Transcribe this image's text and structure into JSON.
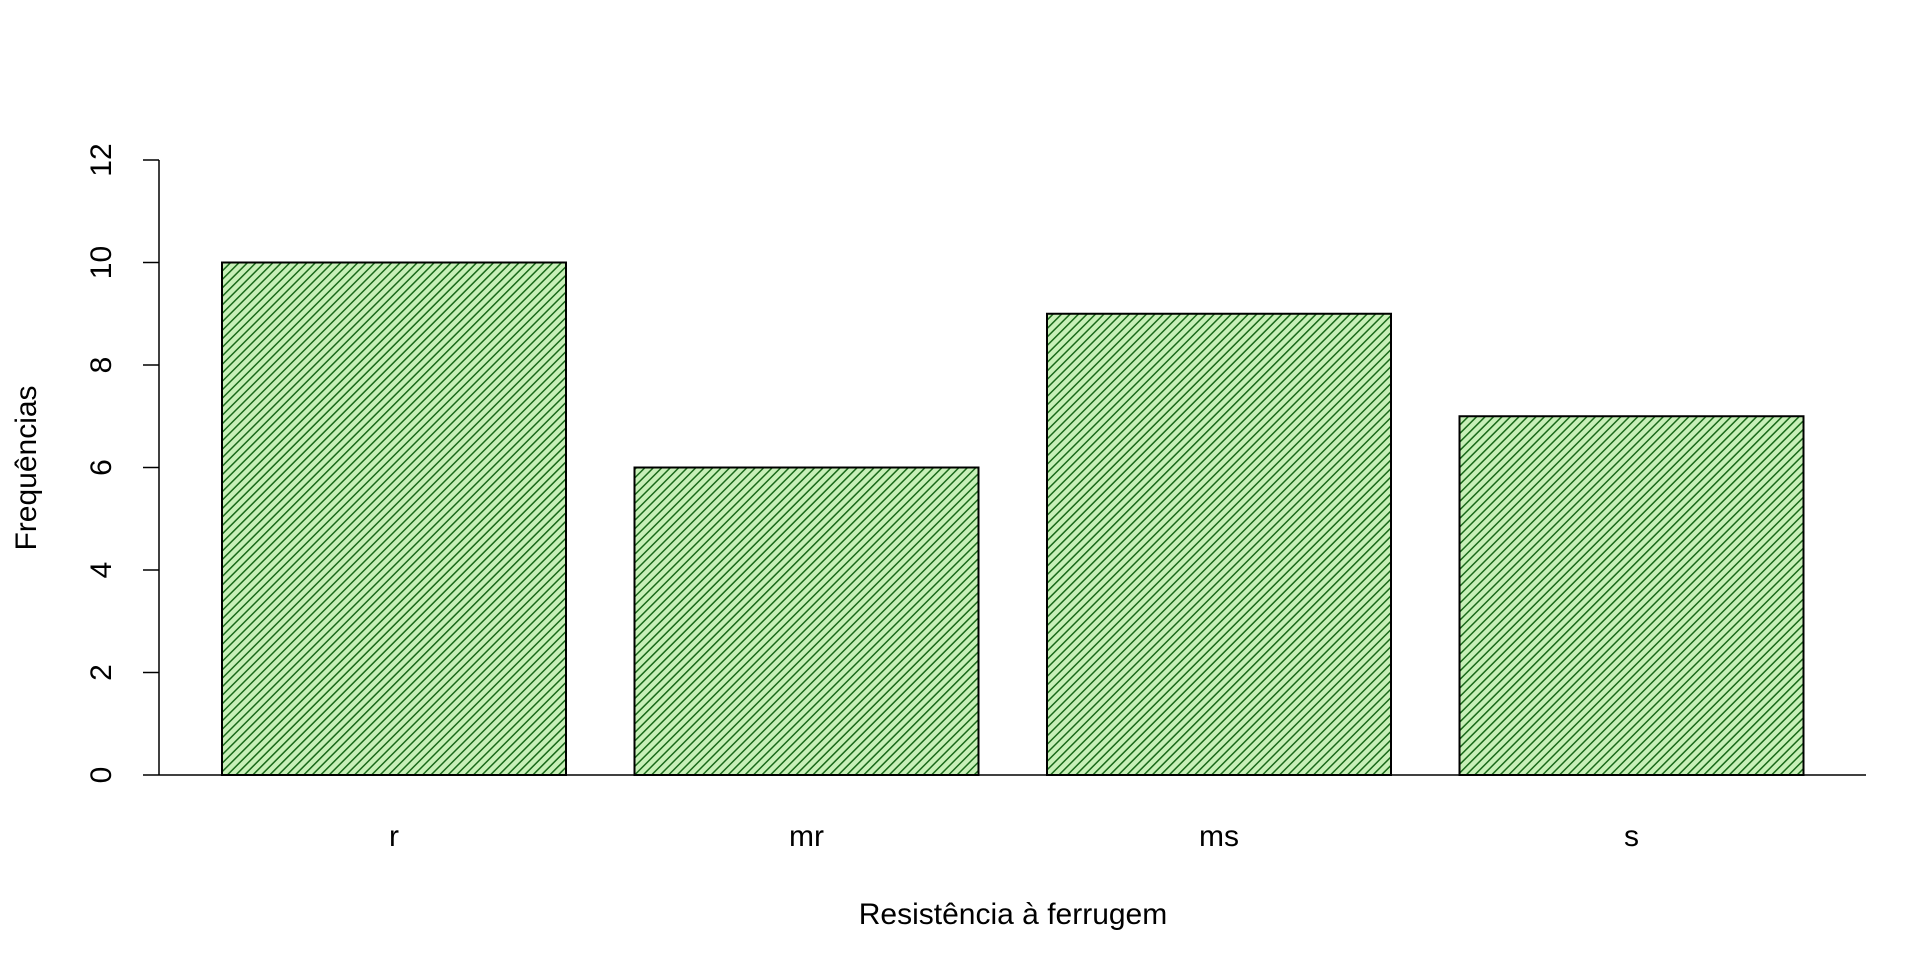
{
  "chart_data": {
    "type": "bar",
    "title": "",
    "xlabel": "Resistência à ferrugem",
    "ylabel": "Frequências",
    "categories": [
      "r",
      "mr",
      "ms",
      "s"
    ],
    "values": [
      10,
      6,
      9,
      7
    ],
    "ylim": [
      0,
      12
    ],
    "yticks": [
      "0",
      "2",
      "4",
      "6",
      "8",
      "10",
      "12"
    ],
    "grid": false,
    "legend": "none",
    "bar_fill": "#c8f0b8",
    "hatch_color": "#1a6a1a",
    "bar_edge": "#000000"
  }
}
